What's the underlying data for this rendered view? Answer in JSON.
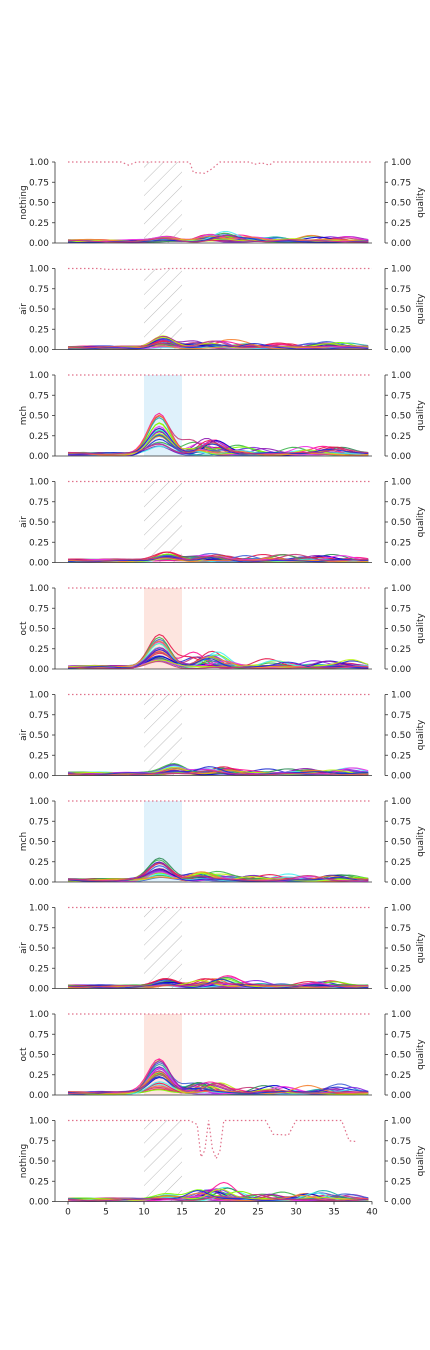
{
  "chart_data": {
    "type": "line",
    "xlim": [
      0,
      40
    ],
    "ylim": [
      0,
      1
    ],
    "x_ticks": [
      "0",
      "5",
      "10",
      "15",
      "20",
      "25",
      "30",
      "35",
      "40"
    ],
    "y_ticks": [
      "0.00",
      "0.25",
      "0.50",
      "0.75",
      "1.00"
    ],
    "right_ylabel": "quality",
    "stimulus_window": [
      10,
      15
    ],
    "colors": {
      "quality": "#e0708a",
      "mch_fill": "#dff1fb",
      "oct_fill": "#fde5df",
      "hatch": "#bbbbbb",
      "axis": "#333333"
    },
    "series_palette": [
      "#e6194b",
      "#3cb44b",
      "#4363d8",
      "#911eb4",
      "#46f0f0",
      "#f032e6",
      "#bcf60c",
      "#f58231",
      "#1f2fd0",
      "#c73a7a",
      "#20b2aa",
      "#8a2be2",
      "#2e8b57",
      "#ff1493",
      "#7cfc00",
      "#0000cd"
    ],
    "panels": [
      {
        "ylabel": "nothing",
        "odor": "nothing",
        "stim": "hatch",
        "peak": 0.06,
        "peak_center": 13,
        "late_bump": 0.08,
        "quality": [
          [
            0,
            1
          ],
          [
            7,
            1
          ],
          [
            8,
            0.96
          ],
          [
            9,
            1
          ],
          [
            16,
            1
          ],
          [
            16.5,
            0.87
          ],
          [
            18,
            0.86
          ],
          [
            19,
            0.92
          ],
          [
            20,
            1
          ],
          [
            24,
            1
          ],
          [
            24.5,
            0.97
          ],
          [
            25.5,
            0.99
          ],
          [
            26.5,
            0.96
          ],
          [
            27,
            1
          ],
          [
            40,
            1
          ]
        ]
      },
      {
        "ylabel": "air",
        "odor": "air",
        "stim": "hatch",
        "peak": 0.14,
        "peak_center": 12.5,
        "late_bump": 0.08,
        "quality": [
          [
            0,
            1
          ],
          [
            4,
            1
          ],
          [
            5,
            0.99
          ],
          [
            12,
            0.99
          ],
          [
            13,
            1
          ],
          [
            40,
            1
          ]
        ]
      },
      {
        "ylabel": "mch",
        "odor": "mch",
        "stim": "mch",
        "peak": 0.6,
        "peak_center": 12,
        "late_bump": 0.2,
        "quality": [
          [
            0,
            1
          ],
          [
            40,
            1
          ]
        ]
      },
      {
        "ylabel": "air",
        "odor": "air",
        "stim": "hatch",
        "peak": 0.1,
        "peak_center": 13,
        "late_bump": 0.06,
        "quality": [
          [
            0,
            1
          ],
          [
            40,
            1
          ]
        ]
      },
      {
        "ylabel": "oct",
        "odor": "oct",
        "stim": "oct",
        "peak": 0.5,
        "peak_center": 12,
        "late_bump": 0.2,
        "quality": [
          [
            0,
            1
          ],
          [
            40,
            1
          ]
        ]
      },
      {
        "ylabel": "air",
        "odor": "air",
        "stim": "hatch",
        "peak": 0.12,
        "peak_center": 14,
        "late_bump": 0.08,
        "quality": [
          [
            0,
            1
          ],
          [
            40,
            1
          ]
        ]
      },
      {
        "ylabel": "mch",
        "odor": "mch",
        "stim": "mch",
        "peak": 0.27,
        "peak_center": 12,
        "late_bump": 0.1,
        "quality": [
          [
            0,
            1
          ],
          [
            40,
            1
          ]
        ]
      },
      {
        "ylabel": "air",
        "odor": "air",
        "stim": "hatch",
        "peak": 0.1,
        "peak_center": 13,
        "late_bump": 0.1,
        "quality": [
          [
            0,
            1
          ],
          [
            40,
            1
          ]
        ]
      },
      {
        "ylabel": "oct",
        "odor": "oct",
        "stim": "oct",
        "peak": 0.42,
        "peak_center": 12,
        "late_bump": 0.14,
        "quality": [
          [
            0,
            1
          ],
          [
            40,
            1
          ]
        ]
      },
      {
        "ylabel": "nothing",
        "odor": "nothing",
        "stim": "hatch",
        "peak": 0.06,
        "peak_center": 13,
        "late_bump": 0.15,
        "quality": [
          [
            0,
            1
          ],
          [
            16,
            1
          ],
          [
            17,
            0.95
          ],
          [
            17.5,
            0.55
          ],
          [
            18,
            0.63
          ],
          [
            18.5,
            1
          ],
          [
            19,
            0.65
          ],
          [
            19.5,
            0.53
          ],
          [
            20,
            0.63
          ],
          [
            20.5,
            1
          ],
          [
            26,
            1
          ],
          [
            27,
            0.83
          ],
          [
            29,
            0.82
          ],
          [
            30,
            1
          ],
          [
            36,
            1
          ],
          [
            37,
            0.75
          ],
          [
            38,
            0.74
          ]
        ]
      }
    ]
  }
}
